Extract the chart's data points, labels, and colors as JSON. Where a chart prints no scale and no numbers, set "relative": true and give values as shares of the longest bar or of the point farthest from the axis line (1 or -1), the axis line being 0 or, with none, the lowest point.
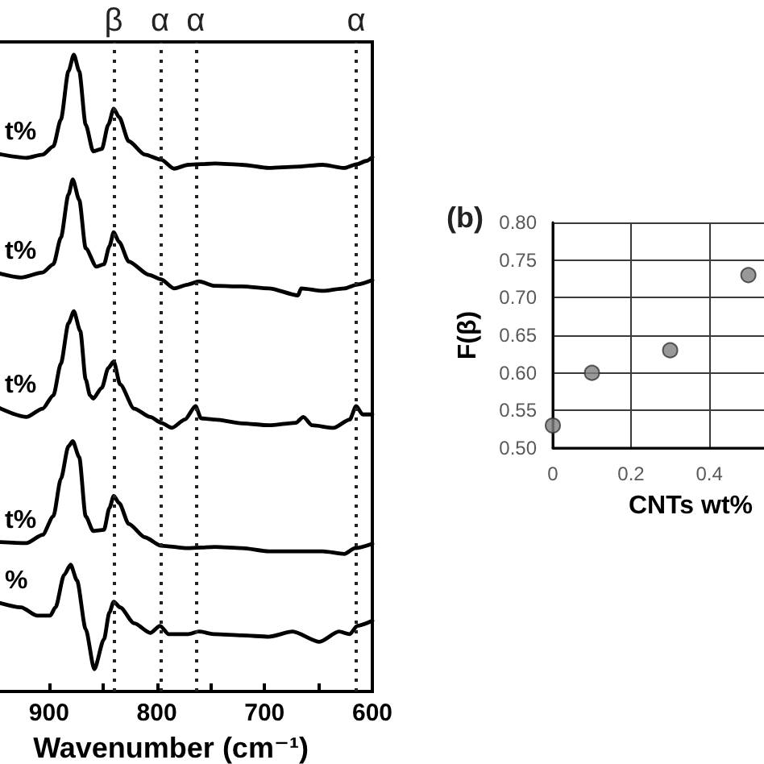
{
  "chart_data": [
    {
      "type": "line",
      "xlabel": "Wavenumber (cm⁻¹)",
      "relative": true,
      "xlim": [
        950,
        600
      ],
      "xticks": [
        900,
        {
          "value": 850,
          "label": null
        },
        800,
        {
          "value": 750,
          "label": null
        },
        700,
        {
          "value": 650,
          "label": null
        },
        600
      ],
      "marker": "none",
      "line_style": "solid",
      "series": [
        {
          "name": "t%",
          "color": "#000000",
          "x": [
            950,
            921,
            906,
            896,
            889,
            882,
            877,
            872,
            866,
            859,
            851,
            845,
            840,
            835,
            826,
            811,
            796,
            784,
            771,
            746,
            721,
            696,
            671,
            646,
            626,
            614,
            606,
            600
          ],
          "values": [
            0.845,
            0.838,
            0.843,
            0.856,
            0.898,
            0.974,
            1,
            0.974,
            0.89,
            0.848,
            0.852,
            0.89,
            0.915,
            0.902,
            0.864,
            0.843,
            0.835,
            0.821,
            0.827,
            0.829,
            0.827,
            0.822,
            0.824,
            0.827,
            0.822,
            0.828,
            0.833,
            0.839
          ]
        },
        {
          "name": "t%",
          "color": "#000000",
          "x": [
            950,
            926,
            906,
            896,
            889,
            882,
            878,
            872,
            866,
            856,
            849,
            844,
            840,
            835,
            826,
            807,
            796,
            784,
            771,
            761,
            746,
            721,
            696,
            669,
            666,
            646,
            626,
            614,
            600
          ],
          "values": [
            0.658,
            0.65,
            0.658,
            0.671,
            0.713,
            0.78,
            0.804,
            0.772,
            0.696,
            0.667,
            0.671,
            0.699,
            0.721,
            0.706,
            0.675,
            0.654,
            0.647,
            0.633,
            0.639,
            0.644,
            0.637,
            0.636,
            0.633,
            0.622,
            0.633,
            0.629,
            0.633,
            0.639,
            0.646
          ]
        },
        {
          "name": "t%",
          "color": "#000000",
          "x": [
            950,
            921,
            906,
            896,
            889,
            882,
            877,
            871,
            866,
            862,
            859,
            851,
            845,
            840,
            834,
            821,
            806,
            796,
            786,
            774,
            764,
            759,
            746,
            721,
            696,
            671,
            664,
            656,
            636,
            621,
            615,
            609,
            600
          ],
          "values": [
            0.448,
            0.431,
            0.444,
            0.465,
            0.515,
            0.578,
            0.597,
            0.566,
            0.49,
            0.465,
            0.46,
            0.477,
            0.508,
            0.518,
            0.482,
            0.444,
            0.431,
            0.422,
            0.414,
            0.427,
            0.448,
            0.429,
            0.427,
            0.421,
            0.418,
            0.422,
            0.431,
            0.418,
            0.414,
            0.427,
            0.448,
            0.435,
            0.435
          ]
        },
        {
          "name": "t%",
          "color": "#000000",
          "x": [
            950,
            921,
            906,
            896,
            889,
            882,
            878,
            872,
            866,
            859,
            849,
            844,
            840,
            835,
            826,
            811,
            796,
            771,
            746,
            721,
            696,
            671,
            646,
            626,
            616,
            600
          ],
          "values": [
            0.235,
            0.233,
            0.246,
            0.275,
            0.334,
            0.385,
            0.393,
            0.368,
            0.275,
            0.252,
            0.254,
            0.288,
            0.307,
            0.296,
            0.263,
            0.242,
            0.229,
            0.225,
            0.227,
            0.225,
            0.22,
            0.22,
            0.22,
            0.216,
            0.225,
            0.232
          ]
        },
        {
          "name": "%",
          "color": "#000000",
          "x": [
            950,
            926,
            911,
            899,
            894,
            886,
            880,
            874,
            866,
            858,
            849,
            844,
            840,
            834,
            821,
            806,
            797,
            789,
            771,
            761,
            746,
            721,
            696,
            674,
            649,
            631,
            621,
            614,
            600
          ],
          "values": [
            0.141,
            0.132,
            0.119,
            0.119,
            0.132,
            0.183,
            0.199,
            0.174,
            0.098,
            0.035,
            0.082,
            0.124,
            0.141,
            0.132,
            0.107,
            0.092,
            0.103,
            0.09,
            0.09,
            0.094,
            0.09,
            0.088,
            0.086,
            0.094,
            0.078,
            0.094,
            0.09,
            0.103,
            0.111
          ]
        }
      ],
      "ref_lines": [
        {
          "axis": "x",
          "value": 840,
          "label": "β",
          "line_style": "dotted",
          "color": "#222222"
        },
        {
          "axis": "x",
          "value": 797,
          "label": "α",
          "line_style": "dotted",
          "color": "#222222"
        },
        {
          "axis": "x",
          "value": 764,
          "label": "α",
          "line_style": "dotted",
          "color": "#222222"
        },
        {
          "axis": "x",
          "value": 615,
          "label": "α",
          "line_style": "dotted",
          "color": "#222222"
        }
      ]
    },
    {
      "type": "scatter",
      "title": "(b)",
      "xlabel": "CNTs wt%",
      "ylabel": "F(β)",
      "x": [
        0,
        0.1,
        0.3,
        0.5
      ],
      "values": [
        0.53,
        0.6,
        0.63,
        0.73
      ],
      "color": "#808080",
      "xlim": [
        0,
        0.54
      ],
      "xticks": [
        0,
        0.2,
        0.4
      ],
      "ylim": [
        0.5,
        0.8
      ],
      "yticks": [
        {
          "value": 0.5,
          "label": "0.50"
        },
        {
          "value": 0.55,
          "label": "0.55"
        },
        {
          "value": 0.6,
          "label": "0.60"
        },
        {
          "value": 0.65,
          "label": "0.65"
        },
        {
          "value": 0.7,
          "label": "0.70"
        },
        {
          "value": 0.75,
          "label": "0.75"
        },
        {
          "value": 0.8,
          "label": "0.80"
        }
      ],
      "grid": true,
      "marker": "circle"
    }
  ]
}
